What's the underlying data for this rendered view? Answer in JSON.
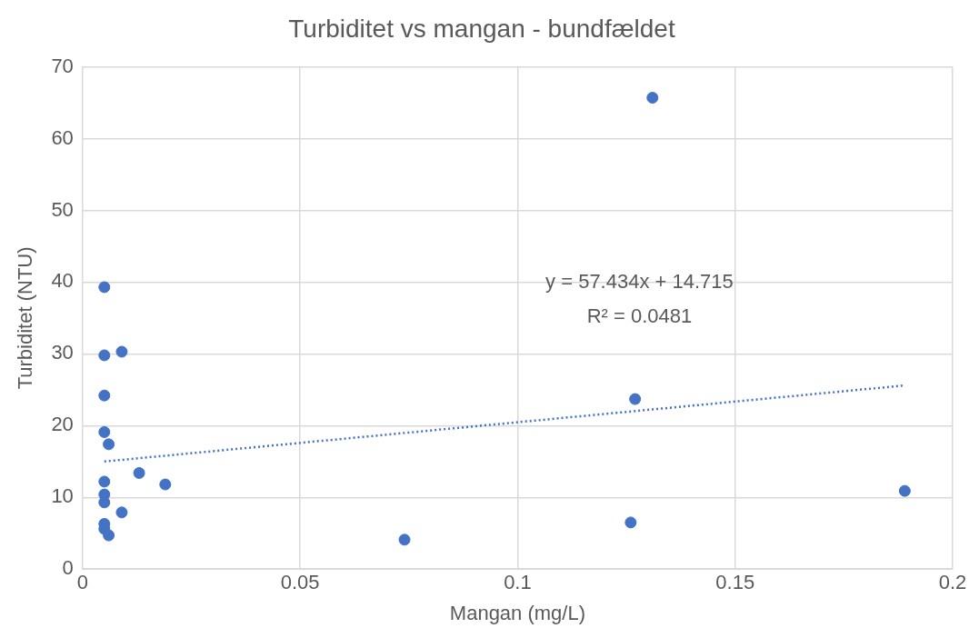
{
  "chart_data": {
    "type": "scatter",
    "title": "Turbiditet vs mangan - bundfældet",
    "xlabel": "Mangan (mg/L)",
    "ylabel": "Turbiditet (NTU)",
    "xlim": [
      0,
      0.2
    ],
    "xticks": [
      0,
      0.05,
      0.1,
      0.15,
      0.2
    ],
    "ylim": [
      0,
      70
    ],
    "yticks": [
      0,
      10,
      20,
      30,
      40,
      50,
      60,
      70
    ],
    "grid": true,
    "legend": false,
    "marker": "circle",
    "series": [
      {
        "type": "scatter",
        "color": "#4472c4",
        "x": [
          0.005,
          0.005,
          0.009,
          0.005,
          0.005,
          0.006,
          0.005,
          0.013,
          0.019,
          0.005,
          0.005,
          0.009,
          0.005,
          0.005,
          0.006,
          0.074,
          0.126,
          0.127,
          0.131,
          0.189
        ],
        "values": [
          39.3,
          29.8,
          30.3,
          24.2,
          19.1,
          17.4,
          12.2,
          13.4,
          11.8,
          10.4,
          9.3,
          7.9,
          6.3,
          5.6,
          4.7,
          4.1,
          6.5,
          23.7,
          65.7,
          10.9
        ]
      },
      {
        "type": "line",
        "color": "#4472c4",
        "line_style": "dotted",
        "marker": "none",
        "x": [
          0.005,
          0.189
        ],
        "values": [
          15.0,
          25.6
        ]
      }
    ],
    "annotations": [
      "y = 57.434x + 14.715",
      "R² = 0.0481"
    ]
  }
}
